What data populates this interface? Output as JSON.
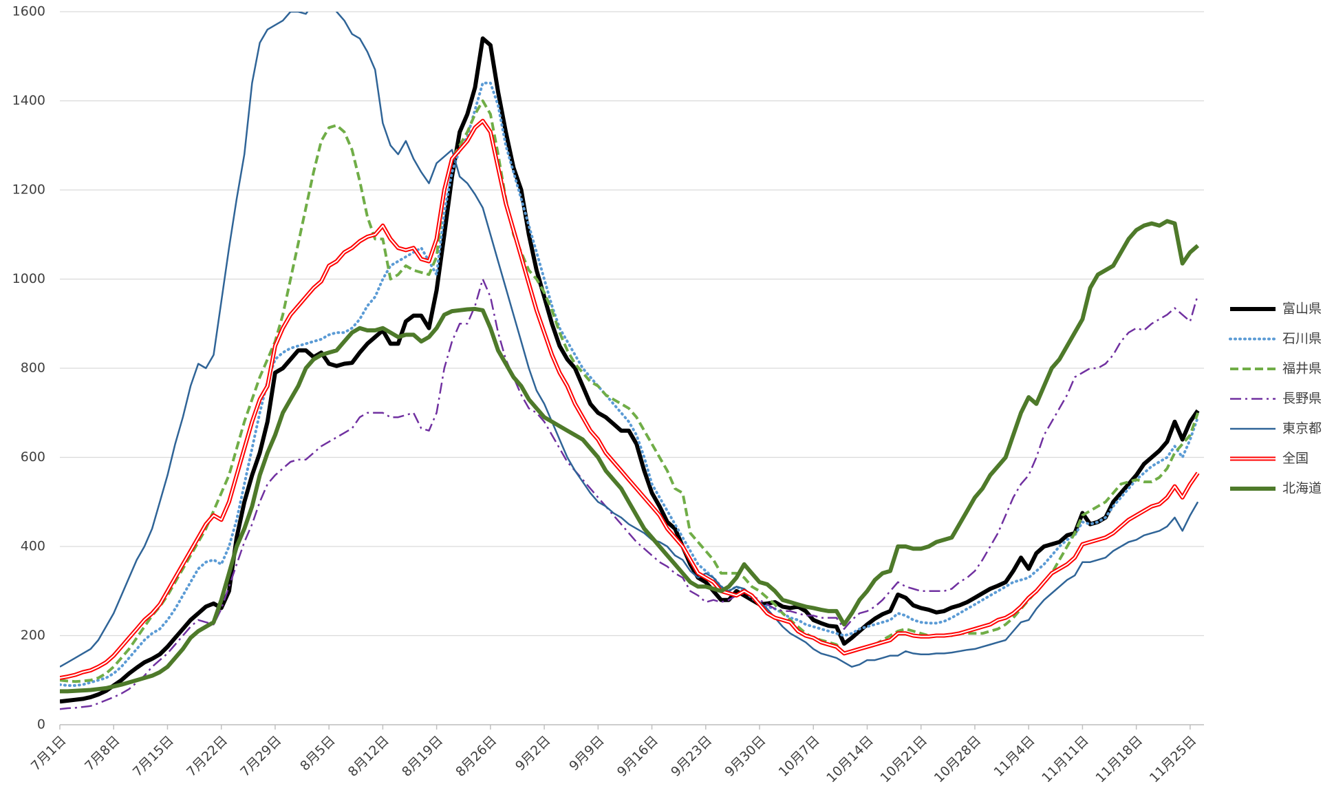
{
  "chart_data": {
    "type": "line",
    "categories": [
      "7月1日",
      null,
      null,
      null,
      null,
      null,
      null,
      "7月8日",
      null,
      null,
      null,
      null,
      null,
      null,
      "7月15日",
      null,
      null,
      null,
      null,
      null,
      null,
      "7月22日",
      null,
      null,
      null,
      null,
      null,
      null,
      "7月29日",
      null,
      null,
      null,
      null,
      null,
      null,
      "8月5日",
      null,
      null,
      null,
      null,
      null,
      null,
      "8月12日",
      null,
      null,
      null,
      null,
      null,
      null,
      "8月19日",
      null,
      null,
      null,
      null,
      null,
      null,
      "8月26日",
      null,
      null,
      null,
      null,
      null,
      null,
      "9月2日",
      null,
      null,
      null,
      null,
      null,
      null,
      "9月9日",
      null,
      null,
      null,
      null,
      null,
      null,
      "9月16日",
      null,
      null,
      null,
      null,
      null,
      null,
      "9月23日",
      null,
      null,
      null,
      null,
      null,
      null,
      "9月30日",
      null,
      null,
      null,
      null,
      null,
      null,
      "10月7日",
      null,
      null,
      null,
      null,
      null,
      null,
      "10月14日",
      null,
      null,
      null,
      null,
      null,
      null,
      "10月21日",
      null,
      null,
      null,
      null,
      null,
      null,
      "10月28日",
      null,
      null,
      null,
      null,
      null,
      null,
      "11月4日",
      null,
      null,
      null,
      null,
      null,
      null,
      "11月11日",
      null,
      null,
      null,
      null,
      null,
      null,
      "11月18日",
      null,
      null,
      null,
      null,
      null,
      null,
      "11月25日",
      null
    ],
    "ylim": [
      0,
      1600
    ],
    "yticks": [
      0,
      200,
      400,
      600,
      800,
      1000,
      1200,
      1400,
      1600
    ],
    "grid": true,
    "legend": "right",
    "series": [
      {
        "name": "富山県",
        "color": "#000000",
        "style": "bold",
        "values": [
          52,
          54,
          56,
          58,
          62,
          68,
          76,
          88,
          100,
          115,
          128,
          140,
          148,
          158,
          175,
          195,
          215,
          235,
          250,
          265,
          272,
          262,
          300,
          420,
          500,
          560,
          610,
          680,
          790,
          800,
          820,
          840,
          840,
          825,
          835,
          810,
          805,
          810,
          812,
          835,
          855,
          870,
          885,
          855,
          855,
          905,
          918,
          918,
          890,
          975,
          1100,
          1230,
          1330,
          1370,
          1430,
          1540,
          1525,
          1420,
          1330,
          1250,
          1200,
          1100,
          1020,
          960,
          900,
          850,
          820,
          800,
          760,
          720,
          700,
          690,
          675,
          660,
          660,
          630,
          570,
          520,
          490,
          455,
          440,
          400,
          360,
          330,
          320,
          300,
          280,
          280,
          300,
          290,
          280,
          270,
          272,
          275,
          265,
          262,
          265,
          255,
          235,
          228,
          222,
          220,
          182,
          195,
          210,
          225,
          238,
          248,
          255,
          292,
          285,
          268,
          262,
          258,
          252,
          255,
          263,
          268,
          275,
          285,
          295,
          305,
          312,
          320,
          345,
          375,
          350,
          385,
          400,
          405,
          410,
          425,
          430,
          475,
          450,
          455,
          465,
          500,
          520,
          540,
          560,
          585,
          600,
          615,
          635,
          680,
          640,
          680,
          705
        ]
      },
      {
        "name": "石川県",
        "color": "#5b9bd5",
        "style": "dotted",
        "values": [
          90,
          88,
          88,
          90,
          95,
          100,
          105,
          115,
          130,
          150,
          170,
          190,
          205,
          215,
          235,
          260,
          290,
          320,
          350,
          365,
          370,
          360,
          400,
          460,
          540,
          620,
          700,
          770,
          820,
          835,
          845,
          850,
          855,
          860,
          865,
          875,
          880,
          880,
          890,
          910,
          940,
          960,
          1000,
          1030,
          1040,
          1050,
          1060,
          1070,
          1040,
          1010,
          1150,
          1240,
          1290,
          1320,
          1380,
          1440,
          1440,
          1390,
          1300,
          1240,
          1180,
          1120,
          1060,
          1000,
          940,
          890,
          860,
          830,
          800,
          780,
          760,
          740,
          720,
          700,
          680,
          650,
          600,
          540,
          510,
          480,
          450,
          420,
          390,
          360,
          345,
          330,
          310,
          300,
          310,
          300,
          285,
          270,
          265,
          260,
          250,
          240,
          235,
          225,
          220,
          215,
          210,
          205,
          200,
          205,
          215,
          220,
          225,
          230,
          235,
          250,
          245,
          235,
          230,
          228,
          228,
          232,
          240,
          250,
          260,
          270,
          280,
          290,
          300,
          310,
          320,
          325,
          330,
          345,
          360,
          380,
          400,
          415,
          425,
          455,
          450,
          455,
          465,
          490,
          510,
          530,
          550,
          565,
          580,
          590,
          600,
          625,
          600,
          640,
          690
        ]
      },
      {
        "name": "福井県",
        "color": "#70ad47",
        "style": "dashed",
        "values": [
          100,
          98,
          97,
          98,
          100,
          105,
          115,
          130,
          150,
          170,
          195,
          220,
          245,
          265,
          290,
          320,
          350,
          380,
          410,
          440,
          480,
          520,
          560,
          620,
          680,
          730,
          780,
          820,
          860,
          920,
          1000,
          1080,
          1160,
          1240,
          1310,
          1340,
          1345,
          1330,
          1290,
          1220,
          1140,
          1090,
          1090,
          1000,
          1010,
          1030,
          1020,
          1015,
          1010,
          1050,
          1200,
          1270,
          1300,
          1330,
          1370,
          1400,
          1370,
          1280,
          1180,
          1100,
          1060,
          1020,
          1000,
          970,
          930,
          880,
          840,
          810,
          790,
          770,
          760,
          740,
          730,
          720,
          710,
          690,
          660,
          630,
          600,
          570,
          530,
          520,
          430,
          410,
          390,
          370,
          340,
          340,
          340,
          330,
          310,
          300,
          285,
          270,
          250,
          235,
          220,
          205,
          195,
          190,
          185,
          180,
          160,
          165,
          170,
          175,
          180,
          190,
          200,
          210,
          215,
          210,
          205,
          200,
          200,
          200,
          200,
          205,
          205,
          205,
          205,
          210,
          215,
          225,
          240,
          260,
          280,
          300,
          320,
          340,
          370,
          400,
          430,
          470,
          480,
          490,
          500,
          520,
          540,
          545,
          550,
          545,
          545,
          555,
          575,
          610,
          630,
          650,
          700
        ]
      },
      {
        "name": "長野県",
        "color": "#7030a0",
        "style": "dashdot",
        "values": [
          35,
          37,
          38,
          40,
          42,
          48,
          55,
          62,
          70,
          80,
          95,
          110,
          130,
          145,
          160,
          180,
          200,
          220,
          235,
          230,
          225,
          260,
          310,
          360,
          410,
          450,
          500,
          540,
          560,
          575,
          590,
          595,
          595,
          610,
          625,
          635,
          645,
          655,
          665,
          690,
          700,
          700,
          700,
          690,
          690,
          695,
          700,
          665,
          660,
          700,
          800,
          860,
          900,
          900,
          940,
          1000,
          960,
          880,
          820,
          780,
          740,
          710,
          700,
          680,
          650,
          620,
          590,
          570,
          550,
          530,
          510,
          490,
          470,
          450,
          430,
          410,
          395,
          380,
          365,
          355,
          340,
          330,
          300,
          290,
          275,
          280,
          275,
          280,
          290,
          295,
          290,
          280,
          270,
          260,
          255,
          255,
          250,
          245,
          245,
          240,
          240,
          240,
          215,
          235,
          250,
          255,
          265,
          280,
          300,
          320,
          310,
          305,
          300,
          300,
          300,
          300,
          305,
          320,
          330,
          345,
          370,
          400,
          430,
          470,
          510,
          540,
          560,
          600,
          650,
          680,
          710,
          740,
          780,
          790,
          800,
          800,
          810,
          830,
          860,
          880,
          890,
          885,
          900,
          910,
          920,
          935,
          920,
          905,
          965
        ]
      },
      {
        "name": "東京都",
        "color": "#2f6497",
        "style": "solid",
        "values": [
          130,
          140,
          150,
          160,
          170,
          190,
          220,
          250,
          290,
          330,
          370,
          400,
          440,
          500,
          560,
          630,
          690,
          760,
          810,
          800,
          830,
          950,
          1070,
          1180,
          1280,
          1440,
          1530,
          1560,
          1570,
          1580,
          1600,
          1600,
          1595,
          1620,
          1640,
          1630,
          1600,
          1580,
          1550,
          1540,
          1510,
          1470,
          1350,
          1300,
          1280,
          1310,
          1270,
          1240,
          1215,
          1260,
          1275,
          1290,
          1230,
          1215,
          1190,
          1160,
          1100,
          1040,
          980,
          920,
          860,
          800,
          750,
          720,
          680,
          640,
          600,
          570,
          545,
          520,
          500,
          490,
          475,
          465,
          450,
          440,
          430,
          415,
          410,
          400,
          380,
          370,
          345,
          330,
          340,
          330,
          310,
          300,
          310,
          305,
          290,
          275,
          260,
          240,
          220,
          205,
          195,
          185,
          170,
          160,
          155,
          150,
          140,
          130,
          135,
          145,
          145,
          150,
          155,
          155,
          165,
          160,
          158,
          158,
          160,
          160,
          162,
          165,
          168,
          170,
          175,
          180,
          185,
          190,
          210,
          230,
          235,
          260,
          280,
          295,
          310,
          325,
          335,
          365,
          365,
          370,
          375,
          390,
          400,
          410,
          415,
          425,
          430,
          435,
          445,
          465,
          435,
          470,
          500
        ]
      },
      {
        "name": "全国",
        "color": "#ff0000",
        "style": "double",
        "values": [
          105,
          108,
          112,
          118,
          122,
          130,
          140,
          155,
          175,
          195,
          215,
          235,
          250,
          270,
          300,
          330,
          360,
          390,
          420,
          450,
          470,
          460,
          500,
          560,
          620,
          680,
          730,
          760,
          850,
          890,
          920,
          940,
          960,
          980,
          995,
          1030,
          1040,
          1060,
          1070,
          1085,
          1095,
          1100,
          1120,
          1090,
          1070,
          1065,
          1070,
          1045,
          1040,
          1090,
          1200,
          1270,
          1290,
          1310,
          1340,
          1355,
          1330,
          1250,
          1170,
          1110,
          1050,
          990,
          930,
          880,
          830,
          790,
          760,
          720,
          690,
          660,
          640,
          610,
          590,
          570,
          550,
          530,
          510,
          490,
          470,
          440,
          420,
          400,
          370,
          340,
          330,
          320,
          300,
          295,
          290,
          300,
          290,
          270,
          250,
          240,
          235,
          230,
          210,
          200,
          195,
          185,
          180,
          175,
          160,
          165,
          170,
          175,
          180,
          185,
          190,
          205,
          205,
          200,
          198,
          198,
          200,
          200,
          202,
          205,
          210,
          215,
          220,
          225,
          235,
          240,
          250,
          265,
          285,
          300,
          320,
          340,
          350,
          360,
          375,
          405,
          410,
          415,
          420,
          430,
          445,
          460,
          470,
          480,
          490,
          495,
          510,
          535,
          510,
          540,
          565
        ]
      },
      {
        "name": "北海道",
        "color": "#4e7a2a",
        "style": "bold",
        "values": [
          75,
          75,
          76,
          77,
          78,
          80,
          82,
          86,
          90,
          95,
          100,
          105,
          110,
          118,
          130,
          150,
          170,
          195,
          210,
          220,
          230,
          280,
          340,
          400,
          440,
          490,
          560,
          610,
          650,
          700,
          730,
          760,
          800,
          820,
          830,
          835,
          840,
          860,
          880,
          890,
          885,
          885,
          890,
          880,
          870,
          875,
          875,
          860,
          870,
          890,
          920,
          928,
          930,
          932,
          933,
          930,
          890,
          840,
          810,
          780,
          760,
          730,
          710,
          690,
          680,
          670,
          660,
          650,
          640,
          620,
          600,
          570,
          550,
          530,
          500,
          470,
          440,
          420,
          400,
          380,
          360,
          340,
          320,
          310,
          310,
          305,
          300,
          310,
          330,
          360,
          340,
          320,
          315,
          300,
          280,
          275,
          270,
          265,
          262,
          258,
          255,
          255,
          225,
          250,
          280,
          300,
          325,
          340,
          345,
          400,
          400,
          395,
          395,
          400,
          410,
          415,
          420,
          450,
          480,
          510,
          530,
          560,
          580,
          600,
          650,
          700,
          735,
          720,
          760,
          800,
          820,
          850,
          880,
          910,
          980,
          1010,
          1020,
          1030,
          1060,
          1090,
          1110,
          1120,
          1125,
          1120,
          1130,
          1125,
          1035,
          1060,
          1075
        ]
      }
    ]
  }
}
